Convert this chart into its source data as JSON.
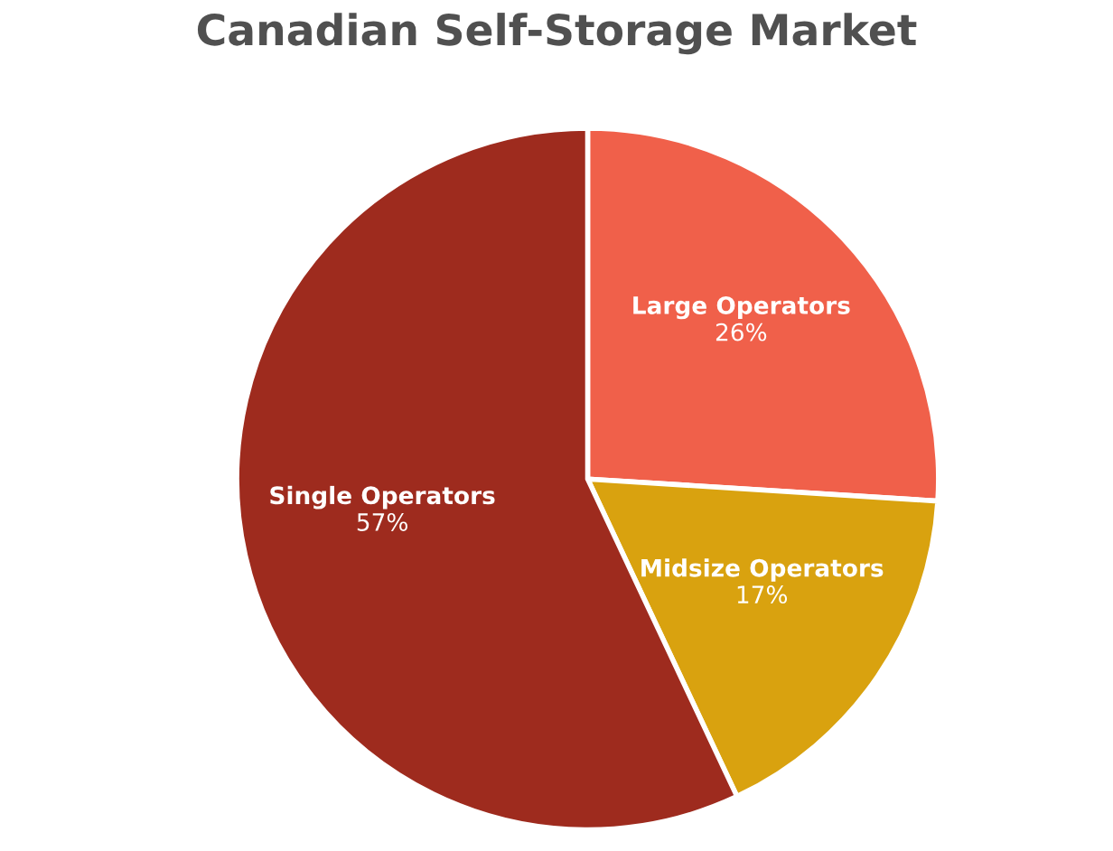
{
  "chart_data": {
    "type": "pie",
    "title": "Canadian Self-Storage Market",
    "categories": [
      "Large Operators",
      "Midsize Operators",
      "Single Operators"
    ],
    "values": [
      26,
      17,
      57
    ],
    "value_labels": [
      "26%",
      "17%",
      "57%"
    ],
    "colors": [
      "#f0604a",
      "#d9a20f",
      "#9e2b1e"
    ],
    "legend": false
  }
}
